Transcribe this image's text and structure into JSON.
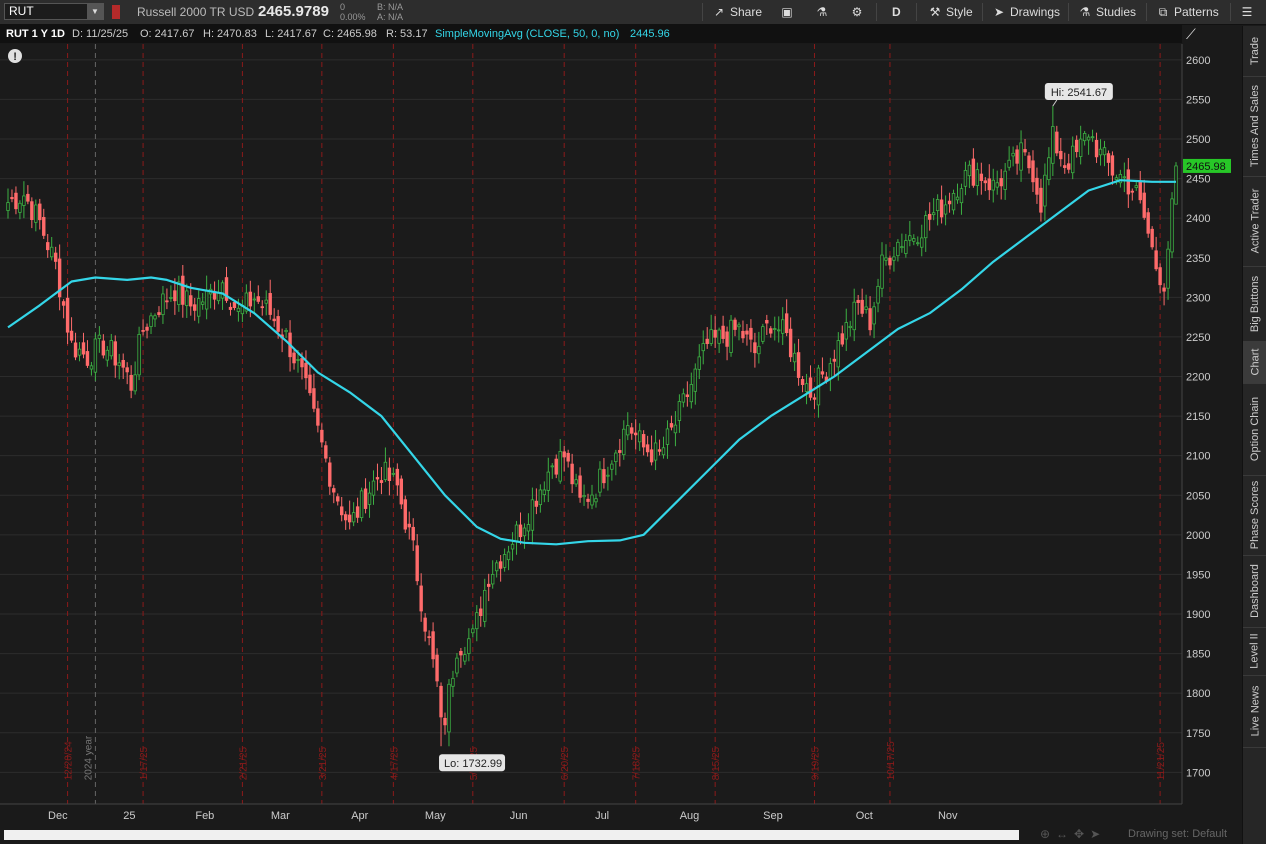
{
  "toolbar": {
    "symbol": "RUT",
    "description": "Russell 2000 TR USD",
    "last": "2465.9789",
    "change": "0",
    "change_pct": "0.00%",
    "bid": "B: N/A",
    "ask": "A: N/A",
    "share": "Share",
    "aggregation": "D",
    "style": "Style",
    "drawings": "Drawings",
    "studies": "Studies",
    "patterns": "Patterns"
  },
  "infobar": {
    "title": "RUT 1 Y 1D",
    "date": "D: 11/25/25",
    "open": "O: 2417.67",
    "high": "H: 2470.83",
    "low": "L: 2417.67",
    "close": "C: 2465.98",
    "range": "R: 53.17",
    "study": "SimpleMovingAvg (CLOSE, 50, 0, no)",
    "study_value": "2445.96"
  },
  "side_tabs": [
    "Trade",
    "Times And Sales",
    "Active Trader",
    "Big Buttons",
    "Chart",
    "Option Chain",
    "Phase Scores",
    "Dashboard",
    "Level II",
    "Live News"
  ],
  "active_tab": "Chart",
  "bottom": {
    "drawing_set": "Drawing set: Default"
  },
  "chart_data": {
    "type": "candlestick",
    "price_axis": {
      "min": 1660,
      "max": 2620,
      "ticks": [
        1700,
        1750,
        1800,
        1850,
        1900,
        1950,
        2000,
        2050,
        2100,
        2150,
        2200,
        2250,
        2300,
        2350,
        2400,
        2450,
        2500,
        2550,
        2600
      ]
    },
    "x_labels": [
      "Dec",
      "25",
      "Feb",
      "Mar",
      "Apr",
      "May",
      "Jun",
      "Jul",
      "Aug",
      "Sep",
      "Oct",
      "Nov"
    ],
    "event_labels": [
      "12/20/24",
      "1/17/25",
      "2/21/25",
      "3/21/25",
      "4/17/25",
      "5/16/25",
      "6/20/25",
      "7/18/25",
      "8/15/25",
      "9/19/25",
      "10/17/25",
      "11/21/25"
    ],
    "year_label": "2024 year",
    "high_label": "Hi: 2541.67",
    "low_label": "Lo: 1732.99",
    "last_price": "2465.98",
    "colors": {
      "up": "#3cb043",
      "down": "#ff6b6b",
      "sma": "#34d6e8",
      "event": "#8b1a1a",
      "last_tag": "#27c727"
    },
    "close_anchors": [
      {
        "i": 0,
        "c": 2420
      },
      {
        "i": 4,
        "c": 2430
      },
      {
        "i": 8,
        "c": 2395
      },
      {
        "i": 12,
        "c": 2340
      },
      {
        "i": 16,
        "c": 2240
      },
      {
        "i": 20,
        "c": 2225
      },
      {
        "i": 24,
        "c": 2240
      },
      {
        "i": 28,
        "c": 2220
      },
      {
        "i": 31,
        "c": 2190
      },
      {
        "i": 34,
        "c": 2260
      },
      {
        "i": 38,
        "c": 2290
      },
      {
        "i": 42,
        "c": 2310
      },
      {
        "i": 46,
        "c": 2290
      },
      {
        "i": 50,
        "c": 2300
      },
      {
        "i": 54,
        "c": 2320
      },
      {
        "i": 58,
        "c": 2280
      },
      {
        "i": 62,
        "c": 2300
      },
      {
        "i": 66,
        "c": 2280
      },
      {
        "i": 70,
        "c": 2250
      },
      {
        "i": 74,
        "c": 2200
      },
      {
        "i": 78,
        "c": 2130
      },
      {
        "i": 82,
        "c": 2060
      },
      {
        "i": 86,
        "c": 2010
      },
      {
        "i": 90,
        "c": 2050
      },
      {
        "i": 94,
        "c": 2080
      },
      {
        "i": 98,
        "c": 2060
      },
      {
        "i": 102,
        "c": 1980
      },
      {
        "i": 105,
        "c": 1890
      },
      {
        "i": 108,
        "c": 1810
      },
      {
        "i": 110,
        "c": 1770
      },
      {
        "i": 113,
        "c": 1860
      },
      {
        "i": 117,
        "c": 1870
      },
      {
        "i": 121,
        "c": 1950
      },
      {
        "i": 125,
        "c": 1980
      },
      {
        "i": 129,
        "c": 2010
      },
      {
        "i": 133,
        "c": 2050
      },
      {
        "i": 137,
        "c": 2090
      },
      {
        "i": 140,
        "c": 2100
      },
      {
        "i": 144,
        "c": 2040
      },
      {
        "i": 148,
        "c": 2060
      },
      {
        "i": 152,
        "c": 2100
      },
      {
        "i": 156,
        "c": 2140
      },
      {
        "i": 160,
        "c": 2110
      },
      {
        "i": 164,
        "c": 2100
      },
      {
        "i": 168,
        "c": 2140
      },
      {
        "i": 172,
        "c": 2190
      },
      {
        "i": 176,
        "c": 2240
      },
      {
        "i": 180,
        "c": 2250
      },
      {
        "i": 184,
        "c": 2260
      },
      {
        "i": 188,
        "c": 2230
      },
      {
        "i": 192,
        "c": 2270
      },
      {
        "i": 196,
        "c": 2250
      },
      {
        "i": 199,
        "c": 2210
      },
      {
        "i": 202,
        "c": 2180
      },
      {
        "i": 206,
        "c": 2210
      },
      {
        "i": 210,
        "c": 2250
      },
      {
        "i": 214,
        "c": 2290
      },
      {
        "i": 217,
        "c": 2270
      },
      {
        "i": 220,
        "c": 2340
      },
      {
        "i": 224,
        "c": 2370
      },
      {
        "i": 228,
        "c": 2380
      },
      {
        "i": 232,
        "c": 2400
      },
      {
        "i": 236,
        "c": 2420
      },
      {
        "i": 240,
        "c": 2450
      },
      {
        "i": 244,
        "c": 2460
      },
      {
        "i": 248,
        "c": 2440
      },
      {
        "i": 252,
        "c": 2460
      },
      {
        "i": 255,
        "c": 2480
      },
      {
        "i": 258,
        "c": 2460
      },
      {
        "i": 260,
        "c": 2420
      },
      {
        "i": 263,
        "c": 2500
      },
      {
        "i": 266,
        "c": 2470
      },
      {
        "i": 269,
        "c": 2480
      },
      {
        "i": 272,
        "c": 2510
      },
      {
        "i": 275,
        "c": 2480
      },
      {
        "i": 278,
        "c": 2460
      },
      {
        "i": 281,
        "c": 2450
      },
      {
        "i": 284,
        "c": 2430
      },
      {
        "i": 286,
        "c": 2400
      },
      {
        "i": 289,
        "c": 2340
      },
      {
        "i": 291,
        "c": 2320
      },
      {
        "i": 293,
        "c": 2410
      },
      {
        "i": 294,
        "c": 2465.98
      }
    ],
    "sma_50": [
      {
        "i": 0,
        "v": 2262
      },
      {
        "i": 8,
        "v": 2290
      },
      {
        "i": 16,
        "v": 2320
      },
      {
        "i": 22,
        "v": 2325
      },
      {
        "i": 30,
        "v": 2322
      },
      {
        "i": 36,
        "v": 2325
      },
      {
        "i": 40,
        "v": 2322
      },
      {
        "i": 46,
        "v": 2312
      },
      {
        "i": 54,
        "v": 2305
      },
      {
        "i": 62,
        "v": 2280
      },
      {
        "i": 70,
        "v": 2245
      },
      {
        "i": 78,
        "v": 2205
      },
      {
        "i": 86,
        "v": 2180
      },
      {
        "i": 94,
        "v": 2150
      },
      {
        "i": 102,
        "v": 2100
      },
      {
        "i": 110,
        "v": 2050
      },
      {
        "i": 118,
        "v": 2010
      },
      {
        "i": 124,
        "v": 1995
      },
      {
        "i": 130,
        "v": 1990
      },
      {
        "i": 138,
        "v": 1988
      },
      {
        "i": 146,
        "v": 1992
      },
      {
        "i": 154,
        "v": 1993
      },
      {
        "i": 160,
        "v": 2000
      },
      {
        "i": 168,
        "v": 2040
      },
      {
        "i": 176,
        "v": 2080
      },
      {
        "i": 184,
        "v": 2120
      },
      {
        "i": 192,
        "v": 2150
      },
      {
        "i": 200,
        "v": 2175
      },
      {
        "i": 208,
        "v": 2200
      },
      {
        "i": 216,
        "v": 2230
      },
      {
        "i": 224,
        "v": 2260
      },
      {
        "i": 232,
        "v": 2280
      },
      {
        "i": 240,
        "v": 2310
      },
      {
        "i": 248,
        "v": 2345
      },
      {
        "i": 256,
        "v": 2375
      },
      {
        "i": 264,
        "v": 2405
      },
      {
        "i": 272,
        "v": 2435
      },
      {
        "i": 280,
        "v": 2448
      },
      {
        "i": 288,
        "v": 2446
      },
      {
        "i": 294,
        "v": 2445.96
      }
    ]
  }
}
